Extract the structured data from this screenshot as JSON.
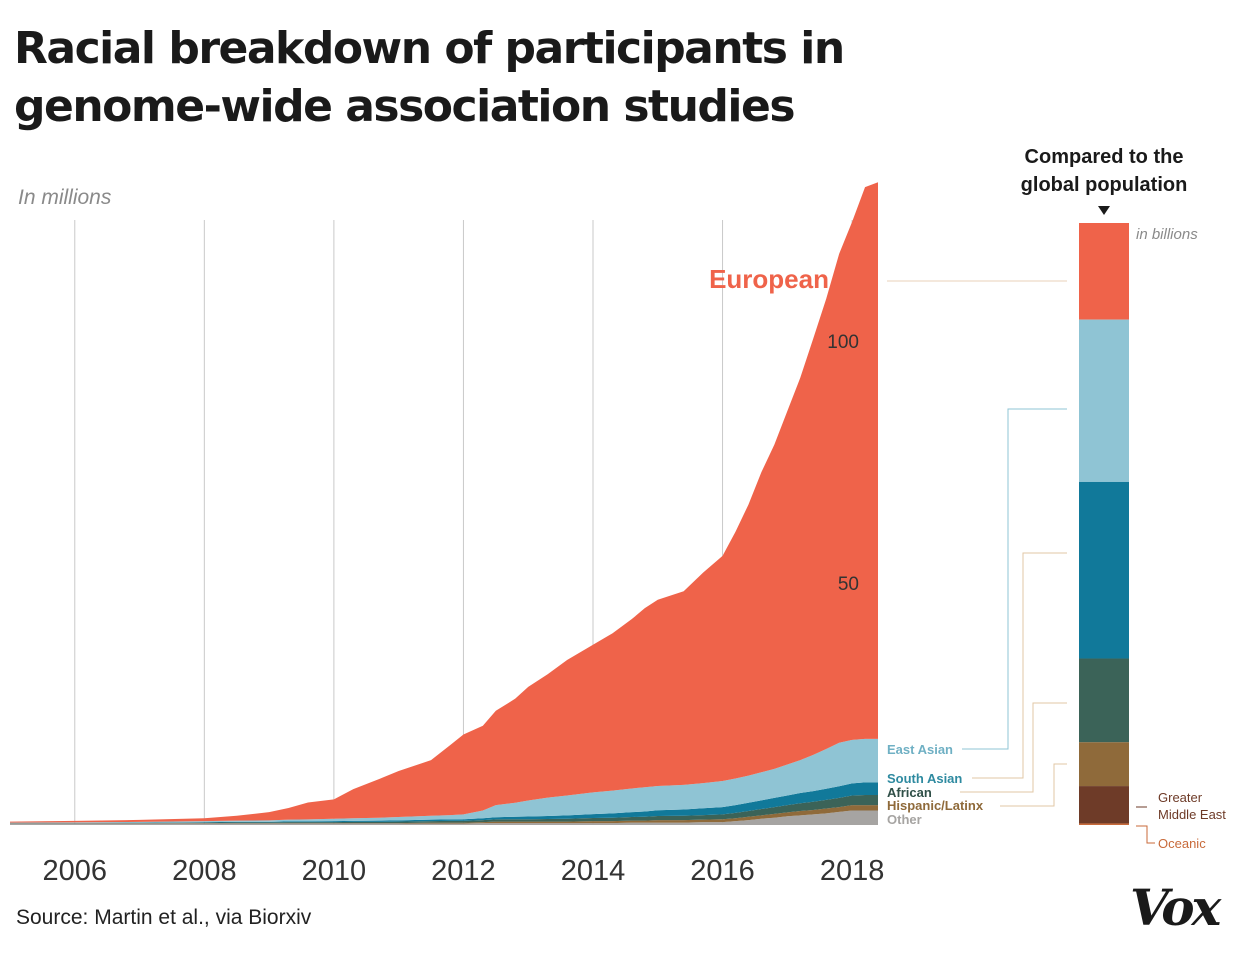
{
  "title": "Racial breakdown of participants in genome-wide association studies",
  "subtitle": "In millions",
  "source": "Source: Martin et al., via Biorxiv",
  "logo": "Vox",
  "chart_data": {
    "type": "area",
    "x_ticks": [
      "2006",
      "2008",
      "2010",
      "2012",
      "2014",
      "2016",
      "2018"
    ],
    "y_tick_labels": [
      "50",
      "100"
    ],
    "x": [
      2005.0,
      2006.0,
      2007.0,
      2008.0,
      2008.5,
      2009.0,
      2009.3,
      2009.6,
      2010.0,
      2010.3,
      2010.7,
      2011.0,
      2011.5,
      2011.8,
      2012.0,
      2012.3,
      2012.5,
      2012.8,
      2013.0,
      2013.3,
      2013.6,
      2014.0,
      2014.3,
      2014.6,
      2014.8,
      2015.0,
      2015.4,
      2015.7,
      2016.0,
      2016.2,
      2016.4,
      2016.6,
      2016.8,
      2017.0,
      2017.2,
      2017.4,
      2017.6,
      2017.8,
      2018.0,
      2018.2,
      2018.4
    ],
    "series": [
      {
        "name": "Other",
        "color": "#a6a4a2",
        "values": [
          0.3,
          0.3,
          0.3,
          0.3,
          0.3,
          0.3,
          0.3,
          0.3,
          0.3,
          0.3,
          0.3,
          0.3,
          0.3,
          0.3,
          0.3,
          0.4,
          0.4,
          0.4,
          0.4,
          0.4,
          0.4,
          0.4,
          0.4,
          0.5,
          0.5,
          0.5,
          0.5,
          0.6,
          0.6,
          0.8,
          1.0,
          1.3,
          1.5,
          1.8,
          2.0,
          2.2,
          2.4,
          2.7,
          3.0,
          3.0,
          3.0
        ]
      },
      {
        "name": "Hispanic/Latinx",
        "color": "#8f6a3a",
        "values": [
          0.05,
          0.05,
          0.05,
          0.1,
          0.1,
          0.1,
          0.1,
          0.1,
          0.1,
          0.1,
          0.1,
          0.1,
          0.2,
          0.2,
          0.2,
          0.2,
          0.3,
          0.3,
          0.3,
          0.3,
          0.3,
          0.4,
          0.4,
          0.4,
          0.4,
          0.5,
          0.5,
          0.5,
          0.6,
          0.6,
          0.7,
          0.7,
          0.8,
          0.8,
          0.9,
          0.9,
          1.0,
          1.0,
          1.1,
          1.1,
          1.1
        ]
      },
      {
        "name": "African",
        "color": "#3b6358",
        "values": [
          0.05,
          0.05,
          0.1,
          0.1,
          0.15,
          0.15,
          0.2,
          0.2,
          0.2,
          0.25,
          0.25,
          0.3,
          0.3,
          0.35,
          0.35,
          0.4,
          0.45,
          0.5,
          0.5,
          0.55,
          0.6,
          0.65,
          0.7,
          0.75,
          0.8,
          0.85,
          0.9,
          0.95,
          1.0,
          1.1,
          1.2,
          1.3,
          1.4,
          1.5,
          1.6,
          1.7,
          1.8,
          1.9,
          2.0,
          2.1,
          2.1
        ]
      },
      {
        "name": "South Asian",
        "color": "#11799a",
        "values": [
          0.05,
          0.05,
          0.05,
          0.1,
          0.1,
          0.1,
          0.15,
          0.15,
          0.2,
          0.2,
          0.25,
          0.25,
          0.3,
          0.3,
          0.35,
          0.4,
          0.45,
          0.5,
          0.55,
          0.6,
          0.7,
          0.8,
          0.9,
          1.0,
          1.1,
          1.2,
          1.3,
          1.4,
          1.5,
          1.6,
          1.7,
          1.8,
          1.9,
          2.0,
          2.1,
          2.2,
          2.3,
          2.4,
          2.5,
          2.6,
          2.6
        ]
      },
      {
        "name": "East Asian",
        "color": "#8fc4d4",
        "values": [
          0.05,
          0.1,
          0.15,
          0.2,
          0.25,
          0.3,
          0.35,
          0.4,
          0.5,
          0.55,
          0.6,
          0.7,
          0.8,
          0.9,
          1.0,
          1.6,
          2.5,
          2.9,
          3.3,
          3.8,
          4.1,
          4.5,
          4.7,
          4.9,
          5.0,
          5.0,
          5.1,
          5.2,
          5.4,
          5.5,
          5.6,
          5.8,
          6.0,
          6.4,
          6.8,
          7.5,
          8.2,
          9.0,
          9.0,
          9.0,
          9.0
        ]
      },
      {
        "name": "European",
        "color": "#ef634a",
        "values": [
          0.2,
          0.3,
          0.4,
          0.6,
          1.0,
          1.7,
          2.4,
          3.5,
          4.0,
          6.0,
          8.0,
          9.5,
          11.5,
          14.5,
          16.5,
          17.5,
          19.5,
          21.5,
          23.5,
          25.5,
          28.0,
          30.5,
          32.5,
          35.0,
          37.0,
          38.5,
          40.0,
          43.5,
          46.5,
          51.0,
          56.0,
          62.0,
          67.0,
          73.0,
          79.0,
          86.0,
          93.0,
          101.0,
          107.0,
          114.0,
          115.0
        ]
      }
    ],
    "series_labels": [
      "European",
      "East Asian",
      "South Asian",
      "African",
      "Hispanic/Latinx",
      "Other"
    ],
    "inset": {
      "title": "Compared to the global population",
      "note": "in billions",
      "segments": [
        {
          "name": "European",
          "color": "#ef634a",
          "value": 0.75
        },
        {
          "name": "East Asian",
          "color": "#8fc4d4",
          "value": 1.26
        },
        {
          "name": "South Asian",
          "color": "#11799a",
          "value": 1.37
        },
        {
          "name": "African",
          "color": "#3b6358",
          "value": 0.65
        },
        {
          "name": "Hispanic/Latinx",
          "color": "#8f6a3a",
          "value": 0.34
        },
        {
          "name": "Greater Middle East",
          "color": "#6e3b28",
          "value": 0.29
        },
        {
          "name": "Oceanic",
          "color": "#c86a3a",
          "value": 0.012
        }
      ],
      "extra_labels": [
        "Greater Middle East",
        "Oceanic"
      ]
    }
  }
}
